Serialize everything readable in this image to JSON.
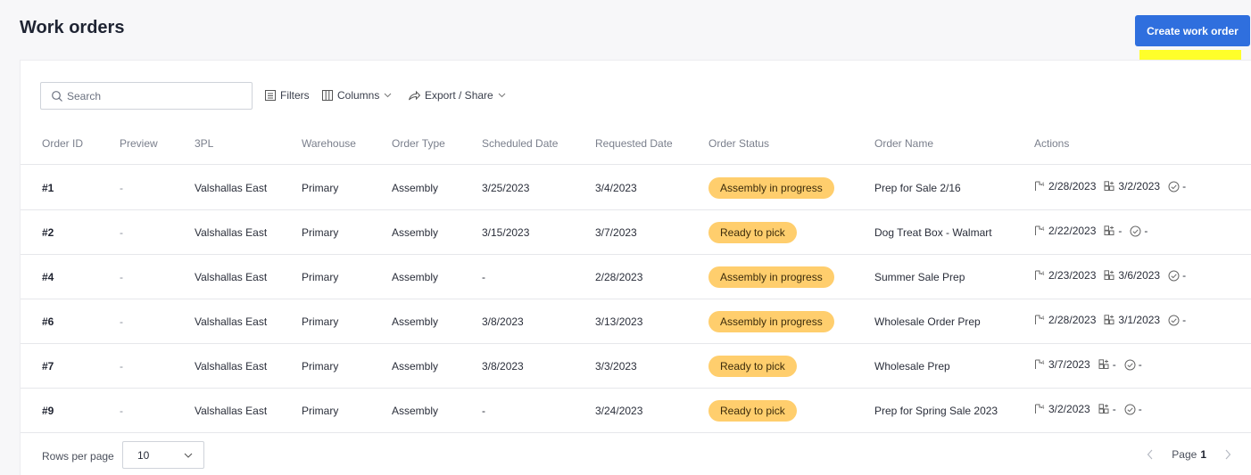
{
  "page": {
    "title": "Work orders",
    "create_button": "Create work order"
  },
  "toolbar": {
    "search_placeholder": "Search",
    "filters_label": "Filters",
    "columns_label": "Columns",
    "export_label": "Export / Share"
  },
  "table": {
    "headers": [
      "Order ID",
      "Preview",
      "3PL",
      "Warehouse",
      "Order Type",
      "Scheduled Date",
      "Requested Date",
      "Order Status",
      "Order Name",
      "Actions"
    ],
    "rows": [
      {
        "id": "#1",
        "preview": "-",
        "tpl": "Valshallas East",
        "warehouse": "Primary",
        "type": "Assembly",
        "scheduled": "3/25/2023",
        "requested": "3/4/2023",
        "status": "Assembly in progress",
        "name": "Prep for Sale 2/16",
        "act1": "2/28/2023",
        "act2": "3/2/2023",
        "act3": "-"
      },
      {
        "id": "#2",
        "preview": "-",
        "tpl": "Valshallas East",
        "warehouse": "Primary",
        "type": "Assembly",
        "scheduled": "3/15/2023",
        "requested": "3/7/2023",
        "status": "Ready to pick",
        "name": "Dog Treat Box - Walmart",
        "act1": "2/22/2023",
        "act2": "-",
        "act3": "-"
      },
      {
        "id": "#4",
        "preview": "-",
        "tpl": "Valshallas East",
        "warehouse": "Primary",
        "type": "Assembly",
        "scheduled": "-",
        "requested": "2/28/2023",
        "status": "Assembly in progress",
        "name": "Summer Sale Prep",
        "act1": "2/23/2023",
        "act2": "3/6/2023",
        "act3": "-"
      },
      {
        "id": "#6",
        "preview": "-",
        "tpl": "Valshallas East",
        "warehouse": "Primary",
        "type": "Assembly",
        "scheduled": "3/8/2023",
        "requested": "3/13/2023",
        "status": "Assembly in progress",
        "name": "Wholesale Order Prep",
        "act1": "2/28/2023",
        "act2": "3/1/2023",
        "act3": "-"
      },
      {
        "id": "#7",
        "preview": "-",
        "tpl": "Valshallas East",
        "warehouse": "Primary",
        "type": "Assembly",
        "scheduled": "3/8/2023",
        "requested": "3/3/2023",
        "status": "Ready to pick",
        "name": "Wholesale Prep",
        "act1": "3/7/2023",
        "act2": "-",
        "act3": "-"
      },
      {
        "id": "#9",
        "preview": "-",
        "tpl": "Valshallas East",
        "warehouse": "Primary",
        "type": "Assembly",
        "scheduled": "-",
        "requested": "3/24/2023",
        "status": "Ready to pick",
        "name": "Prep for Spring Sale 2023",
        "act1": "3/2/2023",
        "act2": "-",
        "act3": "-"
      }
    ]
  },
  "footer": {
    "rows_per_page_label": "Rows per page",
    "rows_per_page_value": "10",
    "page_label": "Page",
    "page_number": "1"
  },
  "colors": {
    "accent": "#2f6fde",
    "status_badge": "#ffce6d",
    "highlight": "#ffff2a"
  },
  "icons": [
    "search-icon",
    "filter-icon",
    "columns-icon",
    "share-icon",
    "chevron-down-icon",
    "pick-icon",
    "assemble-icon",
    "check-circle-icon",
    "chevron-left-icon",
    "chevron-right-icon"
  ]
}
